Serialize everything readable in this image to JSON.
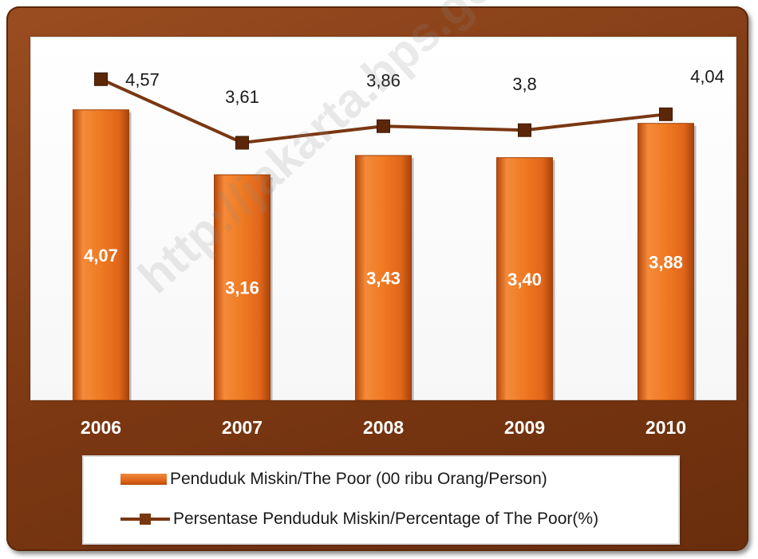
{
  "chart_data": {
    "type": "bar",
    "categories": [
      "2006",
      "2007",
      "2008",
      "2009",
      "2010"
    ],
    "series": [
      {
        "name": "Penduduk Miskin/The Poor (00 ribu Orang/Person)",
        "kind": "bar",
        "values": [
          4.07,
          3.16,
          3.43,
          3.4,
          3.88
        ],
        "labels": [
          "4,07",
          "3,16",
          "3,43",
          "3,40",
          "3,88"
        ],
        "color": "#E46C0A"
      },
      {
        "name": "Persentase Penduduk Miskin/Percentage of The Poor(%)",
        "kind": "line",
        "values": [
          4.57,
          3.61,
          3.86,
          3.8,
          4.04
        ],
        "labels": [
          "4,57",
          "3,61",
          "3,86",
          "3,8",
          "4,04"
        ],
        "color": "#7A3712"
      }
    ],
    "axis_background": "#7A3712",
    "grid": false,
    "legend_position": "bottom"
  },
  "watermark": "http://jakarta.bps.go.id"
}
